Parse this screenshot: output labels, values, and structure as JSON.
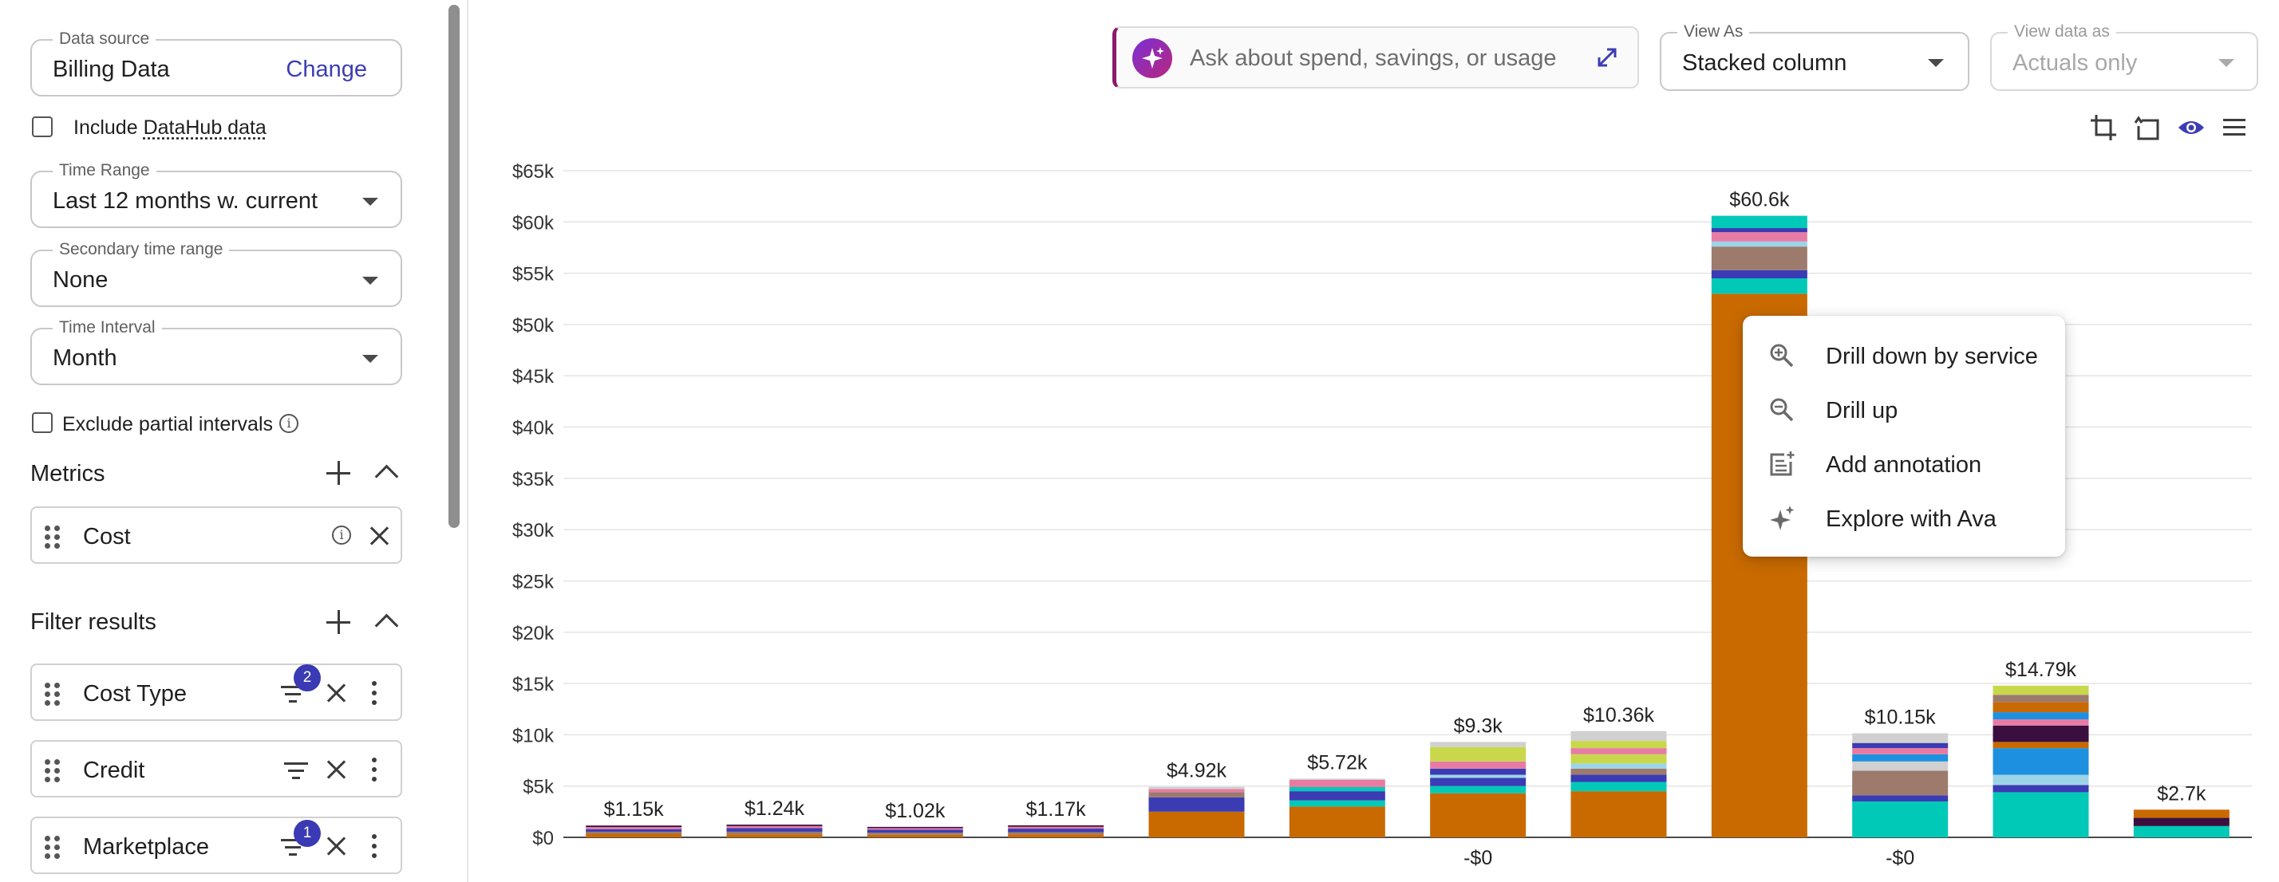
{
  "sidebar": {
    "data_source": {
      "label": "Data source",
      "value": "Billing Data",
      "action": "Change"
    },
    "include_datahub": {
      "prefix": "Include ",
      "link": "DataHub data",
      "checked": false
    },
    "time_range": {
      "label": "Time Range",
      "value": "Last 12 months w. current"
    },
    "secondary_time_range": {
      "label": "Secondary time range",
      "value": "None"
    },
    "time_interval": {
      "label": "Time Interval",
      "value": "Month"
    },
    "exclude_partial": {
      "label": "Exclude partial intervals",
      "checked": false
    },
    "metrics": {
      "title": "Metrics",
      "items": [
        {
          "label": "Cost"
        }
      ]
    },
    "filters": {
      "title": "Filter results",
      "items": [
        {
          "label": "Cost Type",
          "badge": "2"
        },
        {
          "label": "Credit",
          "badge": ""
        },
        {
          "label": "Marketplace",
          "badge": "1"
        }
      ]
    }
  },
  "ava": {
    "placeholder": "Ask about spend, savings, or usage"
  },
  "view_as": {
    "label": "View As",
    "value": "Stacked column"
  },
  "view_data_as": {
    "label": "View data as",
    "value": "Actuals only"
  },
  "context_menu": {
    "items": [
      {
        "label": "Drill down by service",
        "icon": "zoom-in-icon"
      },
      {
        "label": "Drill up",
        "icon": "zoom-out-icon"
      },
      {
        "label": "Add annotation",
        "icon": "note-add-icon"
      },
      {
        "label": "Explore with Ava",
        "icon": "sparkle-icon"
      }
    ]
  },
  "chart_data": {
    "type": "bar",
    "stacked": true,
    "grid": true,
    "ylim": [
      0,
      65000
    ],
    "y_ticks": [
      "$0",
      "$5k",
      "$10k",
      "$15k",
      "$20k",
      "$25k",
      "$30k",
      "$35k",
      "$40k",
      "$45k",
      "$50k",
      "$55k",
      "$60k",
      "$65k"
    ],
    "y_tick_values": [
      0,
      5000,
      10000,
      15000,
      20000,
      25000,
      30000,
      35000,
      40000,
      45000,
      50000,
      55000,
      60000,
      65000
    ],
    "palette": [
      "#c96a00",
      "#00c9b7",
      "#3b3bb3",
      "#9c7b6d",
      "#e87ba3",
      "#c8d84a",
      "#d0d0d0",
      "#1e90e0",
      "#3a0f3f",
      "#9cd4e8"
    ],
    "totals": [
      1150,
      1240,
      1020,
      1170,
      4920,
      5720,
      9300,
      10360,
      60600,
      10150,
      14790,
      2700
    ],
    "total_labels": [
      "$1.15k",
      "$1.24k",
      "$1.02k",
      "$1.17k",
      "$4.92k",
      "$5.72k",
      "$9.3k",
      "$10.36k",
      "$60.6k",
      "$10.15k",
      "$14.79k",
      "$2.7k"
    ],
    "negative_labels": [
      "",
      "",
      "",
      "",
      "",
      "",
      "-$0",
      "",
      "",
      "-$0",
      "",
      ""
    ],
    "stacks": [
      [
        {
          "c": 0,
          "v": 350
        },
        {
          "c": 3,
          "v": 200
        },
        {
          "c": 2,
          "v": 250
        },
        {
          "c": 4,
          "v": 200
        },
        {
          "c": 8,
          "v": 150
        }
      ],
      [
        {
          "c": 0,
          "v": 300
        },
        {
          "c": 3,
          "v": 250
        },
        {
          "c": 2,
          "v": 350
        },
        {
          "c": 4,
          "v": 200
        },
        {
          "c": 8,
          "v": 140
        }
      ],
      [
        {
          "c": 0,
          "v": 250
        },
        {
          "c": 3,
          "v": 200
        },
        {
          "c": 2,
          "v": 300
        },
        {
          "c": 4,
          "v": 150
        },
        {
          "c": 8,
          "v": 120
        }
      ],
      [
        {
          "c": 0,
          "v": 300
        },
        {
          "c": 3,
          "v": 200
        },
        {
          "c": 2,
          "v": 350
        },
        {
          "c": 4,
          "v": 180
        },
        {
          "c": 8,
          "v": 140
        }
      ],
      [
        {
          "c": 0,
          "v": 2500
        },
        {
          "c": 2,
          "v": 1400
        },
        {
          "c": 3,
          "v": 500
        },
        {
          "c": 4,
          "v": 300
        },
        {
          "c": 6,
          "v": 220
        }
      ],
      [
        {
          "c": 0,
          "v": 3000
        },
        {
          "c": 1,
          "v": 600
        },
        {
          "c": 2,
          "v": 900
        },
        {
          "c": 1,
          "v": 400
        },
        {
          "c": 4,
          "v": 700
        },
        {
          "c": 6,
          "v": 120
        }
      ],
      [
        {
          "c": 0,
          "v": 4300
        },
        {
          "c": 1,
          "v": 700
        },
        {
          "c": 2,
          "v": 800
        },
        {
          "c": 9,
          "v": 300
        },
        {
          "c": 2,
          "v": 600
        },
        {
          "c": 4,
          "v": 700
        },
        {
          "c": 5,
          "v": 1400
        },
        {
          "c": 6,
          "v": 500
        }
      ],
      [
        {
          "c": 0,
          "v": 4500
        },
        {
          "c": 1,
          "v": 900
        },
        {
          "c": 2,
          "v": 700
        },
        {
          "c": 3,
          "v": 600
        },
        {
          "c": 9,
          "v": 500
        },
        {
          "c": 5,
          "v": 900
        },
        {
          "c": 4,
          "v": 600
        },
        {
          "c": 5,
          "v": 700
        },
        {
          "c": 6,
          "v": 960
        }
      ],
      [
        {
          "c": 0,
          "v": 53000
        },
        {
          "c": 1,
          "v": 1500
        },
        {
          "c": 2,
          "v": 800
        },
        {
          "c": 3,
          "v": 2300
        },
        {
          "c": 9,
          "v": 500
        },
        {
          "c": 4,
          "v": 900
        },
        {
          "c": 2,
          "v": 400
        },
        {
          "c": 1,
          "v": 1200
        }
      ],
      [
        {
          "c": 1,
          "v": 3500
        },
        {
          "c": 2,
          "v": 600
        },
        {
          "c": 3,
          "v": 2400
        },
        {
          "c": 6,
          "v": 900
        },
        {
          "c": 7,
          "v": 700
        },
        {
          "c": 4,
          "v": 600
        },
        {
          "c": 2,
          "v": 500
        },
        {
          "c": 6,
          "v": 950
        }
      ],
      [
        {
          "c": 1,
          "v": 4400
        },
        {
          "c": 2,
          "v": 700
        },
        {
          "c": 9,
          "v": 1000
        },
        {
          "c": 7,
          "v": 2600
        },
        {
          "c": 0,
          "v": 600
        },
        {
          "c": 8,
          "v": 1600
        },
        {
          "c": 4,
          "v": 600
        },
        {
          "c": 7,
          "v": 700
        },
        {
          "c": 0,
          "v": 1000
        },
        {
          "c": 3,
          "v": 700
        },
        {
          "c": 5,
          "v": 890
        }
      ],
      [
        {
          "c": 1,
          "v": 1100
        },
        {
          "c": 8,
          "v": 800
        },
        {
          "c": 0,
          "v": 800
        }
      ]
    ]
  }
}
